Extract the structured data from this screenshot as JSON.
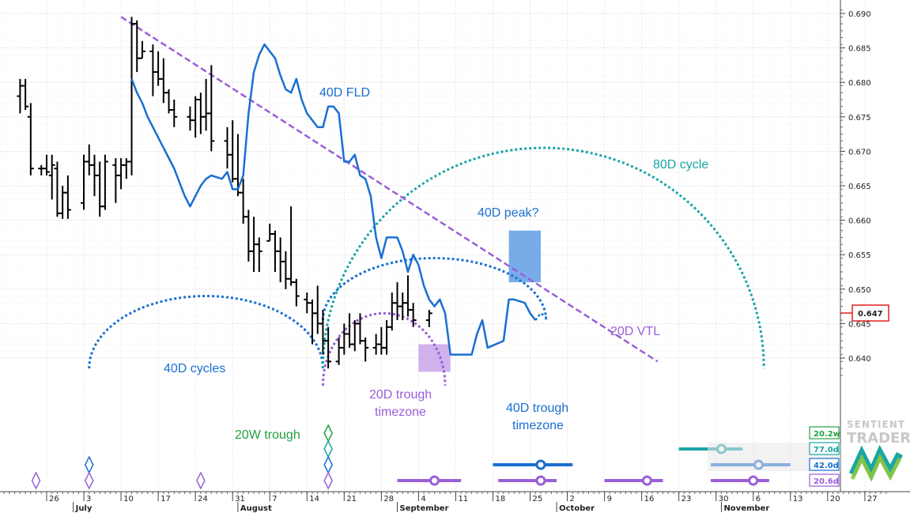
{
  "chart_data": {
    "type": "ohlc",
    "y_axis": {
      "range": [
        0.6355,
        0.6915
      ],
      "tick_labels": [
        "0.690",
        "0.685",
        "0.680",
        "0.675",
        "0.670",
        "0.665",
        "0.660",
        "0.655",
        "0.650",
        "0.645",
        "0.640"
      ],
      "last_price": "0.647",
      "position": "right"
    },
    "x_axis": {
      "day_labels": [
        {
          "label": "26",
          "day": 0
        },
        {
          "label": "3",
          "day": 7
        },
        {
          "label": "10",
          "day": 14
        },
        {
          "label": "17",
          "day": 21
        },
        {
          "label": "24",
          "day": 28
        },
        {
          "label": "31",
          "day": 35
        },
        {
          "label": "7",
          "day": 42
        },
        {
          "label": "14",
          "day": 49
        },
        {
          "label": "21",
          "day": 56
        },
        {
          "label": "28",
          "day": 63
        },
        {
          "label": "4",
          "day": 70
        },
        {
          "label": "11",
          "day": 77
        },
        {
          "label": "18",
          "day": 84
        },
        {
          "label": "25",
          "day": 91
        },
        {
          "label": "2",
          "day": 98
        },
        {
          "label": "9",
          "day": 105
        },
        {
          "label": "16",
          "day": 112
        },
        {
          "label": "23",
          "day": 119
        },
        {
          "label": "30",
          "day": 126
        },
        {
          "label": "6",
          "day": 133
        },
        {
          "label": "13",
          "day": 140
        },
        {
          "label": "20",
          "day": 147
        },
        {
          "label": "27",
          "day": 154
        }
      ],
      "month_labels": [
        {
          "label": "July",
          "day": 5
        },
        {
          "label": "August",
          "day": 36
        },
        {
          "label": "September",
          "day": 66
        },
        {
          "label": "October",
          "day": 96
        },
        {
          "label": "November",
          "day": 127
        }
      ]
    },
    "grid": true,
    "price_bars": [
      {
        "day": -5,
        "o": 0.678,
        "h": 0.6805,
        "l": 0.6755,
        "c": 0.6795
      },
      {
        "day": -4,
        "o": 0.6795,
        "h": 0.6805,
        "l": 0.676,
        "c": 0.6765
      },
      {
        "day": -3,
        "o": 0.675,
        "h": 0.677,
        "l": 0.6665,
        "c": 0.6675
      },
      {
        "day": -1,
        "o": 0.6675,
        "h": 0.668,
        "l": 0.6665,
        "c": 0.6675
      },
      {
        "day": 0,
        "o": 0.6675,
        "h": 0.6695,
        "l": 0.6665,
        "c": 0.667
      },
      {
        "day": 1,
        "o": 0.6665,
        "h": 0.6695,
        "l": 0.663,
        "c": 0.668
      },
      {
        "day": 2,
        "o": 0.6675,
        "h": 0.6685,
        "l": 0.6605,
        "c": 0.661
      },
      {
        "day": 3,
        "o": 0.661,
        "h": 0.665,
        "l": 0.6602,
        "c": 0.664
      },
      {
        "day": 4,
        "o": 0.664,
        "h": 0.6665,
        "l": 0.6602,
        "c": 0.6615
      },
      {
        "day": 7,
        "o": 0.6625,
        "h": 0.6695,
        "l": 0.6615,
        "c": 0.6685
      },
      {
        "day": 8,
        "o": 0.6685,
        "h": 0.671,
        "l": 0.6665,
        "c": 0.668
      },
      {
        "day": 9,
        "o": 0.668,
        "h": 0.6695,
        "l": 0.6635,
        "c": 0.6665
      },
      {
        "day": 10,
        "o": 0.6665,
        "h": 0.6685,
        "l": 0.6605,
        "c": 0.662
      },
      {
        "day": 11,
        "o": 0.662,
        "h": 0.6695,
        "l": 0.6615,
        "c": 0.6685
      },
      {
        "day": 13,
        "o": 0.668,
        "h": 0.669,
        "l": 0.6625,
        "c": 0.6665
      },
      {
        "day": 14,
        "o": 0.6665,
        "h": 0.669,
        "l": 0.6645,
        "c": 0.668
      },
      {
        "day": 15,
        "o": 0.668,
        "h": 0.669,
        "l": 0.666,
        "c": 0.6685
      },
      {
        "day": 16,
        "o": 0.6685,
        "h": 0.6895,
        "l": 0.6665,
        "c": 0.6885
      },
      {
        "day": 17,
        "o": 0.6885,
        "h": 0.689,
        "l": 0.6815,
        "c": 0.6835
      },
      {
        "day": 18,
        "o": 0.6835,
        "h": 0.686,
        "l": 0.6835,
        "c": 0.6845
      },
      {
        "day": 20,
        "o": 0.6845,
        "h": 0.6855,
        "l": 0.678,
        "c": 0.6815
      },
      {
        "day": 21,
        "o": 0.6815,
        "h": 0.6845,
        "l": 0.6795,
        "c": 0.6805
      },
      {
        "day": 22,
        "o": 0.6805,
        "h": 0.6835,
        "l": 0.677,
        "c": 0.6785
      },
      {
        "day": 23,
        "o": 0.6785,
        "h": 0.679,
        "l": 0.6755,
        "c": 0.676
      },
      {
        "day": 24,
        "o": 0.676,
        "h": 0.6775,
        "l": 0.6735,
        "c": 0.675
      },
      {
        "day": 27,
        "o": 0.675,
        "h": 0.6765,
        "l": 0.673,
        "c": 0.6745
      },
      {
        "day": 28,
        "o": 0.6745,
        "h": 0.678,
        "l": 0.672,
        "c": 0.6775
      },
      {
        "day": 29,
        "o": 0.6775,
        "h": 0.6785,
        "l": 0.6725,
        "c": 0.675
      },
      {
        "day": 30,
        "o": 0.675,
        "h": 0.6805,
        "l": 0.673,
        "c": 0.6755
      },
      {
        "day": 31,
        "o": 0.6755,
        "h": 0.6825,
        "l": 0.67,
        "c": 0.6715
      },
      {
        "day": 34,
        "o": 0.6715,
        "h": 0.6735,
        "l": 0.6675,
        "c": 0.6695
      },
      {
        "day": 35,
        "o": 0.6695,
        "h": 0.6745,
        "l": 0.6655,
        "c": 0.666
      },
      {
        "day": 36,
        "o": 0.666,
        "h": 0.6725,
        "l": 0.6635,
        "c": 0.664
      },
      {
        "day": 37,
        "o": 0.664,
        "h": 0.666,
        "l": 0.6595,
        "c": 0.6605
      },
      {
        "day": 38,
        "o": 0.6605,
        "h": 0.6615,
        "l": 0.654,
        "c": 0.6555
      },
      {
        "day": 39,
        "o": 0.6555,
        "h": 0.6605,
        "l": 0.6525,
        "c": 0.6565
      },
      {
        "day": 40,
        "o": 0.6565,
        "h": 0.6575,
        "l": 0.6525,
        "c": 0.6555
      },
      {
        "day": 42,
        "o": 0.657,
        "h": 0.6595,
        "l": 0.657,
        "c": 0.658
      },
      {
        "day": 43,
        "o": 0.658,
        "h": 0.6585,
        "l": 0.6525,
        "c": 0.6555
      },
      {
        "day": 44,
        "o": 0.6555,
        "h": 0.6575,
        "l": 0.651,
        "c": 0.654
      },
      {
        "day": 45,
        "o": 0.654,
        "h": 0.6555,
        "l": 0.65,
        "c": 0.6515
      },
      {
        "day": 46,
        "o": 0.6515,
        "h": 0.662,
        "l": 0.6505,
        "c": 0.651
      },
      {
        "day": 47,
        "o": 0.651,
        "h": 0.6515,
        "l": 0.6475,
        "c": 0.649
      },
      {
        "day": 49,
        "o": 0.6485,
        "h": 0.6495,
        "l": 0.6465,
        "c": 0.648
      },
      {
        "day": 50,
        "o": 0.648,
        "h": 0.6485,
        "l": 0.642,
        "c": 0.6465
      },
      {
        "day": 51,
        "o": 0.6465,
        "h": 0.6505,
        "l": 0.6435,
        "c": 0.645
      },
      {
        "day": 52,
        "o": 0.645,
        "h": 0.647,
        "l": 0.6405,
        "c": 0.6425
      },
      {
        "day": 53,
        "o": 0.6425,
        "h": 0.6445,
        "l": 0.6385,
        "c": 0.6395
      },
      {
        "day": 55,
        "o": 0.6395,
        "h": 0.643,
        "l": 0.639,
        "c": 0.6415
      },
      {
        "day": 56,
        "o": 0.6415,
        "h": 0.645,
        "l": 0.6405,
        "c": 0.6435
      },
      {
        "day": 57,
        "o": 0.6435,
        "h": 0.6465,
        "l": 0.6415,
        "c": 0.642
      },
      {
        "day": 58,
        "o": 0.642,
        "h": 0.6455,
        "l": 0.641,
        "c": 0.645
      },
      {
        "day": 59,
        "o": 0.645,
        "h": 0.6465,
        "l": 0.642,
        "c": 0.6425
      },
      {
        "day": 60,
        "o": 0.6425,
        "h": 0.643,
        "l": 0.6395,
        "c": 0.6415
      },
      {
        "day": 62,
        "o": 0.6415,
        "h": 0.6435,
        "l": 0.6405,
        "c": 0.642
      },
      {
        "day": 63,
        "o": 0.642,
        "h": 0.6445,
        "l": 0.6405,
        "c": 0.6415
      },
      {
        "day": 64,
        "o": 0.6415,
        "h": 0.6455,
        "l": 0.6405,
        "c": 0.6445
      },
      {
        "day": 65,
        "o": 0.6445,
        "h": 0.6495,
        "l": 0.644,
        "c": 0.648
      },
      {
        "day": 66,
        "o": 0.648,
        "h": 0.651,
        "l": 0.6455,
        "c": 0.6475
      },
      {
        "day": 67,
        "o": 0.6475,
        "h": 0.6495,
        "l": 0.6455,
        "c": 0.648
      },
      {
        "day": 68,
        "o": 0.648,
        "h": 0.652,
        "l": 0.646,
        "c": 0.647
      },
      {
        "day": 69,
        "o": 0.647,
        "h": 0.648,
        "l": 0.6445,
        "c": 0.6455
      },
      {
        "day": 72,
        "o": 0.6455,
        "h": 0.647,
        "l": 0.6445,
        "c": 0.6465
      }
    ],
    "fld_line": {
      "name": "40D FLD",
      "points": [
        [
          16,
          0.6805
        ],
        [
          17,
          0.6785
        ],
        [
          18,
          0.677
        ],
        [
          19,
          0.675
        ],
        [
          20,
          0.6735
        ],
        [
          21,
          0.672
        ],
        [
          22,
          0.6705
        ],
        [
          23,
          0.669
        ],
        [
          24,
          0.6675
        ],
        [
          25,
          0.6655
        ],
        [
          26,
          0.6635
        ],
        [
          27,
          0.662
        ],
        [
          28,
          0.6635
        ],
        [
          29,
          0.665
        ],
        [
          30,
          0.666
        ],
        [
          31,
          0.6665
        ],
        [
          33,
          0.666
        ],
        [
          34,
          0.667
        ],
        [
          35,
          0.6645
        ],
        [
          36,
          0.6645
        ],
        [
          37,
          0.6665
        ],
        [
          38,
          0.6755
        ],
        [
          39,
          0.6815
        ],
        [
          40,
          0.684
        ],
        [
          41,
          0.6855
        ],
        [
          43,
          0.6835
        ],
        [
          44,
          0.681
        ],
        [
          45,
          0.679
        ],
        [
          46,
          0.6785
        ],
        [
          47,
          0.6805
        ],
        [
          48,
          0.6775
        ],
        [
          49,
          0.6755
        ],
        [
          50,
          0.6745
        ],
        [
          51,
          0.6735
        ],
        [
          52,
          0.6735
        ],
        [
          53,
          0.6765
        ],
        [
          54,
          0.6765
        ],
        [
          55,
          0.6755
        ],
        [
          56,
          0.6685
        ],
        [
          57,
          0.6685
        ],
        [
          58,
          0.6695
        ],
        [
          59,
          0.6665
        ],
        [
          60,
          0.666
        ],
        [
          61,
          0.6635
        ],
        [
          62,
          0.6575
        ],
        [
          63,
          0.6545
        ],
        [
          64,
          0.6575
        ],
        [
          65,
          0.6575
        ],
        [
          66,
          0.6575
        ],
        [
          67,
          0.6555
        ],
        [
          68,
          0.6525
        ],
        [
          69,
          0.655
        ],
        [
          70,
          0.6535
        ],
        [
          71,
          0.6505
        ],
        [
          72,
          0.6485
        ],
        [
          73,
          0.6475
        ],
        [
          74,
          0.6485
        ],
        [
          75,
          0.6465
        ],
        [
          76,
          0.6405
        ],
        [
          78,
          0.6405
        ],
        [
          80,
          0.6405
        ],
        [
          81,
          0.6435
        ],
        [
          82,
          0.6455
        ],
        [
          83,
          0.6415
        ],
        [
          86,
          0.6425
        ],
        [
          87,
          0.6485
        ],
        [
          88,
          0.6485
        ],
        [
          90,
          0.648
        ],
        [
          91,
          0.6465
        ],
        [
          92,
          0.6455
        ]
      ],
      "projection_points": [
        [
          92,
          0.6455
        ],
        [
          93,
          0.6465
        ],
        [
          94,
          0.646
        ]
      ]
    },
    "vtl_line": {
      "name": "20D VTL",
      "start": [
        14,
        0.6895
      ],
      "end": [
        115,
        0.6395
      ]
    },
    "cycle_arcs": [
      {
        "name": "40D cycles",
        "start_day": 8,
        "end_day": 52,
        "peak": 0.649,
        "base": 0.6385
      },
      {
        "name": "40D cycles",
        "start_day": 52,
        "end_day": 94,
        "peak": 0.6545,
        "base": 0.6455
      },
      {
        "name": "20D cycle",
        "start_day": 52,
        "end_day": 75,
        "peak": 0.6465,
        "base": 0.636
      },
      {
        "name": "80D cycle",
        "start_day": 52,
        "end_day": 135,
        "peak": 0.6705,
        "base": 0.6385
      }
    ],
    "boxes": [
      {
        "label": "40D peak?",
        "x0": 87,
        "x1": 93,
        "y0": 0.651,
        "y1": 0.6585
      },
      {
        "label": "20D trough timezone",
        "x0": 70,
        "x1": 76,
        "y0": 0.638,
        "y1": 0.642
      }
    ],
    "trough_markers": [
      {
        "group": "20W",
        "day": 53,
        "row": 1
      },
      {
        "group": "77.0d",
        "day": 53,
        "row": 2
      },
      {
        "group": "42.0d",
        "day": 8,
        "row": 3
      },
      {
        "group": "42.0d",
        "day": 53,
        "row": 3
      },
      {
        "group": "20.6d",
        "day": -2,
        "row": 4
      },
      {
        "group": "20.6d",
        "day": 8,
        "row": 4
      },
      {
        "group": "20.6d",
        "day": 29,
        "row": 4
      },
      {
        "group": "20.6d",
        "day": 53,
        "row": 4
      }
    ],
    "projection_ranges": [
      {
        "group": "77.0d",
        "row": 2,
        "x0": 119,
        "x1": 131,
        "center": 127
      },
      {
        "group": "42.0d",
        "row": 3,
        "x0": 84,
        "x1": 99,
        "center": 93
      },
      {
        "group": "42.0d",
        "row": 3,
        "x0": 125,
        "x1": 140,
        "center": 134
      },
      {
        "group": "20.6d",
        "row": 4,
        "x0": 66,
        "x1": 78,
        "center": 73
      },
      {
        "group": "20.6d",
        "row": 4,
        "x0": 85,
        "x1": 96,
        "center": 93
      },
      {
        "group": "20.6d",
        "row": 4,
        "x0": 105,
        "x1": 116,
        "center": 113
      },
      {
        "group": "20.6d",
        "row": 4,
        "x0": 125,
        "x1": 136,
        "center": 133
      }
    ],
    "cycle_badges": [
      {
        "label": "20.2w",
        "color": "#22a040",
        "row": 1
      },
      {
        "label": "77.0d",
        "color": "#1aa5a5",
        "row": 2
      },
      {
        "label": "42.0d",
        "color": "#1a6fd0",
        "row": 3
      },
      {
        "label": "20.6d",
        "color": "#9a5fd8",
        "row": 4
      }
    ]
  },
  "annotations": {
    "fld": "40D FLD",
    "cycle80": "80D cycle",
    "peak40": "40D peak?",
    "vtl20": "20D VTL",
    "cycles40": "40D cycles",
    "tz20_line1": "20D trough",
    "tz20_line2": "timezone",
    "tz40_line1": "40D trough",
    "tz40_line2": "timezone",
    "trough20w": "20W trough"
  },
  "logo": {
    "line1": "SENTIENT",
    "line2": "TRADER"
  },
  "colors": {
    "price": "#000000",
    "fld": "#1a6fd0",
    "cycle40": "#1a6fd0",
    "cycle20": "#9a5fd8",
    "cycle80": "#1aa5a5",
    "vtl": "#9a5fd8",
    "trough20w": "#22a040",
    "peak_box": "#4a90e2",
    "tz_box": "#b07fe0",
    "last_price_border": "#e02020",
    "grid": "#dcdcdc"
  }
}
